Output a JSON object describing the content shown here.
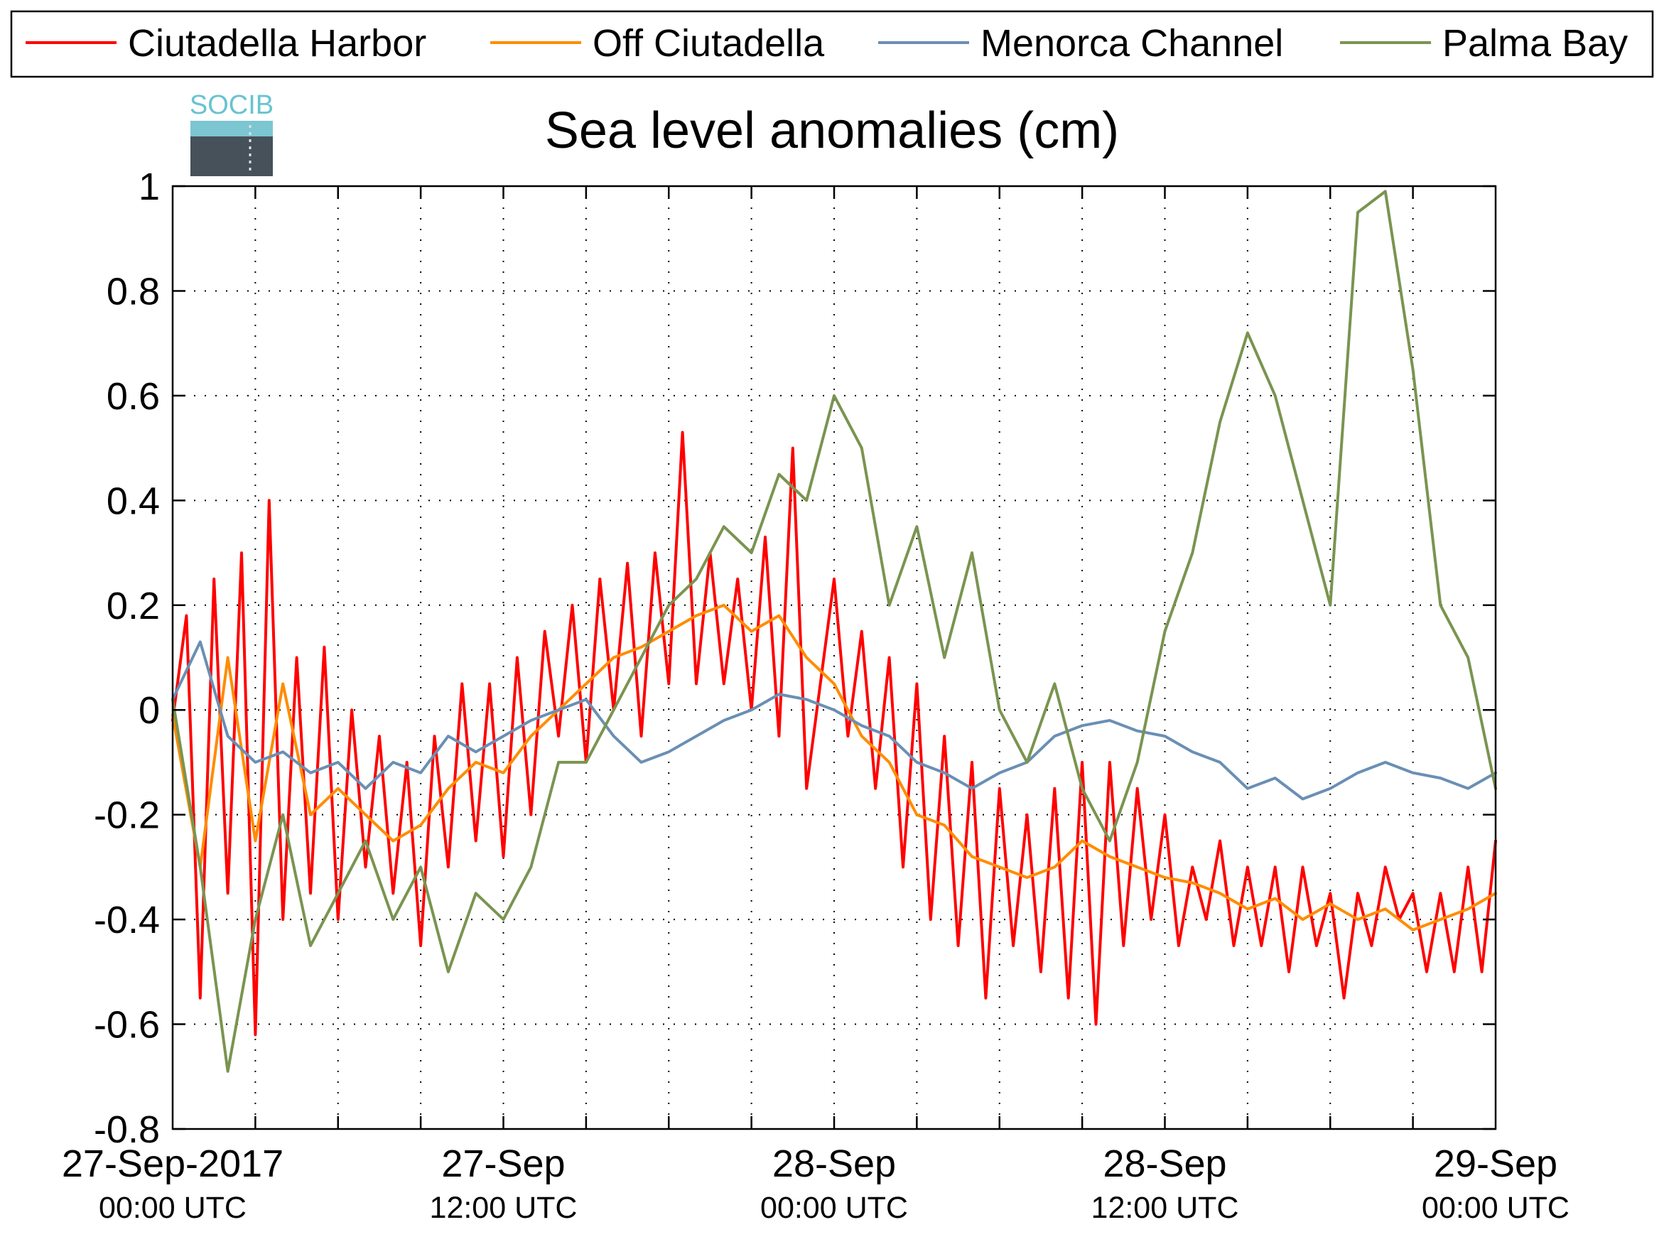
{
  "chart_data": {
    "type": "line",
    "title": "Sea level anomalies (cm)",
    "xlabel": "",
    "ylabel": "",
    "xlim": [
      "2017-09-27 00:00",
      "2017-09-29 00:00"
    ],
    "ylim": [
      -0.8,
      1
    ],
    "x_ticks": [
      {
        "date": "27-Sep-2017",
        "time": "00:00 UTC"
      },
      {
        "date": "27-Sep",
        "time": "12:00 UTC"
      },
      {
        "date": "28-Sep",
        "time": "00:00 UTC"
      },
      {
        "date": "28-Sep",
        "time": "12:00 UTC"
      },
      {
        "date": "29-Sep",
        "time": "00:00 UTC"
      }
    ],
    "y_ticks": [
      "-0.8",
      "-0.6",
      "-0.4",
      "-0.2",
      "0",
      "0.2",
      "0.4",
      "0.6",
      "0.8",
      "1"
    ],
    "grid": true,
    "legend_position": "top",
    "logo_text": "SOCIB",
    "series": [
      {
        "name": "Ciutadella Harbor",
        "color": "#ff0000",
        "points": [
          [
            "2017-09-27 00:00",
            -0.02
          ],
          [
            "2017-09-27 00:30",
            0.18
          ],
          [
            "2017-09-27 01:00",
            -0.55
          ],
          [
            "2017-09-27 01:30",
            0.25
          ],
          [
            "2017-09-27 02:00",
            -0.35
          ],
          [
            "2017-09-27 02:30",
            0.3
          ],
          [
            "2017-09-27 03:00",
            -0.62
          ],
          [
            "2017-09-27 03:30",
            0.4
          ],
          [
            "2017-09-27 04:00",
            -0.4
          ],
          [
            "2017-09-27 04:30",
            0.1
          ],
          [
            "2017-09-27 05:00",
            -0.35
          ],
          [
            "2017-09-27 05:30",
            0.12
          ],
          [
            "2017-09-27 06:00",
            -0.4
          ],
          [
            "2017-09-27 06:30",
            0.0
          ],
          [
            "2017-09-27 07:00",
            -0.3
          ],
          [
            "2017-09-27 07:30",
            -0.05
          ],
          [
            "2017-09-27 08:00",
            -0.35
          ],
          [
            "2017-09-27 08:30",
            -0.1
          ],
          [
            "2017-09-27 09:00",
            -0.45
          ],
          [
            "2017-09-27 09:30",
            -0.05
          ],
          [
            "2017-09-27 10:00",
            -0.3
          ],
          [
            "2017-09-27 10:30",
            0.05
          ],
          [
            "2017-09-27 11:00",
            -0.25
          ],
          [
            "2017-09-27 11:30",
            0.05
          ],
          [
            "2017-09-27 12:00",
            -0.28
          ],
          [
            "2017-09-27 12:30",
            0.1
          ],
          [
            "2017-09-27 13:00",
            -0.2
          ],
          [
            "2017-09-27 13:30",
            0.15
          ],
          [
            "2017-09-27 14:00",
            -0.05
          ],
          [
            "2017-09-27 14:30",
            0.2
          ],
          [
            "2017-09-27 15:00",
            -0.1
          ],
          [
            "2017-09-27 15:30",
            0.25
          ],
          [
            "2017-09-27 16:00",
            0.0
          ],
          [
            "2017-09-27 16:30",
            0.28
          ],
          [
            "2017-09-27 17:00",
            -0.05
          ],
          [
            "2017-09-27 17:30",
            0.3
          ],
          [
            "2017-09-27 18:00",
            0.05
          ],
          [
            "2017-09-27 18:30",
            0.53
          ],
          [
            "2017-09-27 19:00",
            0.05
          ],
          [
            "2017-09-27 19:30",
            0.3
          ],
          [
            "2017-09-27 20:00",
            0.05
          ],
          [
            "2017-09-27 20:30",
            0.25
          ],
          [
            "2017-09-27 21:00",
            0.0
          ],
          [
            "2017-09-27 21:30",
            0.33
          ],
          [
            "2017-09-27 22:00",
            -0.05
          ],
          [
            "2017-09-27 22:30",
            0.5
          ],
          [
            "2017-09-27 23:00",
            -0.15
          ],
          [
            "2017-09-28 00:00",
            0.25
          ],
          [
            "2017-09-28 00:30",
            -0.05
          ],
          [
            "2017-09-28 01:00",
            0.15
          ],
          [
            "2017-09-28 01:30",
            -0.15
          ],
          [
            "2017-09-28 02:00",
            0.1
          ],
          [
            "2017-09-28 02:30",
            -0.3
          ],
          [
            "2017-09-28 03:00",
            0.05
          ],
          [
            "2017-09-28 03:30",
            -0.4
          ],
          [
            "2017-09-28 04:00",
            -0.05
          ],
          [
            "2017-09-28 04:30",
            -0.45
          ],
          [
            "2017-09-28 05:00",
            -0.1
          ],
          [
            "2017-09-28 05:30",
            -0.55
          ],
          [
            "2017-09-28 06:00",
            -0.15
          ],
          [
            "2017-09-28 06:30",
            -0.45
          ],
          [
            "2017-09-28 07:00",
            -0.2
          ],
          [
            "2017-09-28 07:30",
            -0.5
          ],
          [
            "2017-09-28 08:00",
            -0.15
          ],
          [
            "2017-09-28 08:30",
            -0.55
          ],
          [
            "2017-09-28 09:00",
            -0.1
          ],
          [
            "2017-09-28 09:30",
            -0.6
          ],
          [
            "2017-09-28 10:00",
            -0.1
          ],
          [
            "2017-09-28 10:30",
            -0.45
          ],
          [
            "2017-09-28 11:00",
            -0.15
          ],
          [
            "2017-09-28 11:30",
            -0.4
          ],
          [
            "2017-09-28 12:00",
            -0.2
          ],
          [
            "2017-09-28 12:30",
            -0.45
          ],
          [
            "2017-09-28 13:00",
            -0.3
          ],
          [
            "2017-09-28 13:30",
            -0.4
          ],
          [
            "2017-09-28 14:00",
            -0.25
          ],
          [
            "2017-09-28 14:30",
            -0.45
          ],
          [
            "2017-09-28 15:00",
            -0.3
          ],
          [
            "2017-09-28 15:30",
            -0.45
          ],
          [
            "2017-09-28 16:00",
            -0.3
          ],
          [
            "2017-09-28 16:30",
            -0.5
          ],
          [
            "2017-09-28 17:00",
            -0.3
          ],
          [
            "2017-09-28 17:30",
            -0.45
          ],
          [
            "2017-09-28 18:00",
            -0.35
          ],
          [
            "2017-09-28 18:30",
            -0.55
          ],
          [
            "2017-09-28 19:00",
            -0.35
          ],
          [
            "2017-09-28 19:30",
            -0.45
          ],
          [
            "2017-09-28 20:00",
            -0.3
          ],
          [
            "2017-09-28 20:30",
            -0.4
          ],
          [
            "2017-09-28 21:00",
            -0.35
          ],
          [
            "2017-09-28 21:30",
            -0.5
          ],
          [
            "2017-09-28 22:00",
            -0.35
          ],
          [
            "2017-09-28 22:30",
            -0.5
          ],
          [
            "2017-09-28 23:00",
            -0.3
          ],
          [
            "2017-09-28 23:30",
            -0.5
          ],
          [
            "2017-09-29 00:00",
            -0.25
          ]
        ]
      },
      {
        "name": "Off Ciutadella",
        "color": "#ff8c00",
        "points": [
          [
            "2017-09-27 00:00",
            -0.01
          ],
          [
            "2017-09-27 01:00",
            -0.3
          ],
          [
            "2017-09-27 02:00",
            0.1
          ],
          [
            "2017-09-27 03:00",
            -0.25
          ],
          [
            "2017-09-27 04:00",
            0.05
          ],
          [
            "2017-09-27 05:00",
            -0.2
          ],
          [
            "2017-09-27 06:00",
            -0.15
          ],
          [
            "2017-09-27 07:00",
            -0.2
          ],
          [
            "2017-09-27 08:00",
            -0.25
          ],
          [
            "2017-09-27 09:00",
            -0.22
          ],
          [
            "2017-09-27 10:00",
            -0.15
          ],
          [
            "2017-09-27 11:00",
            -0.1
          ],
          [
            "2017-09-27 12:00",
            -0.12
          ],
          [
            "2017-09-27 13:00",
            -0.05
          ],
          [
            "2017-09-27 14:00",
            0.0
          ],
          [
            "2017-09-27 15:00",
            0.05
          ],
          [
            "2017-09-27 16:00",
            0.1
          ],
          [
            "2017-09-27 17:00",
            0.12
          ],
          [
            "2017-09-27 18:00",
            0.15
          ],
          [
            "2017-09-27 19:00",
            0.18
          ],
          [
            "2017-09-27 20:00",
            0.2
          ],
          [
            "2017-09-27 21:00",
            0.15
          ],
          [
            "2017-09-27 22:00",
            0.18
          ],
          [
            "2017-09-27 23:00",
            0.1
          ],
          [
            "2017-09-28 00:00",
            0.05
          ],
          [
            "2017-09-28 01:00",
            -0.05
          ],
          [
            "2017-09-28 02:00",
            -0.1
          ],
          [
            "2017-09-28 03:00",
            -0.2
          ],
          [
            "2017-09-28 04:00",
            -0.22
          ],
          [
            "2017-09-28 05:00",
            -0.28
          ],
          [
            "2017-09-28 06:00",
            -0.3
          ],
          [
            "2017-09-28 07:00",
            -0.32
          ],
          [
            "2017-09-28 08:00",
            -0.3
          ],
          [
            "2017-09-28 09:00",
            -0.25
          ],
          [
            "2017-09-28 10:00",
            -0.28
          ],
          [
            "2017-09-28 11:00",
            -0.3
          ],
          [
            "2017-09-28 12:00",
            -0.32
          ],
          [
            "2017-09-28 13:00",
            -0.33
          ],
          [
            "2017-09-28 14:00",
            -0.35
          ],
          [
            "2017-09-28 15:00",
            -0.38
          ],
          [
            "2017-09-28 16:00",
            -0.36
          ],
          [
            "2017-09-28 17:00",
            -0.4
          ],
          [
            "2017-09-28 18:00",
            -0.37
          ],
          [
            "2017-09-28 19:00",
            -0.4
          ],
          [
            "2017-09-28 20:00",
            -0.38
          ],
          [
            "2017-09-28 21:00",
            -0.42
          ],
          [
            "2017-09-28 22:00",
            -0.4
          ],
          [
            "2017-09-28 23:00",
            -0.38
          ],
          [
            "2017-09-29 00:00",
            -0.35
          ]
        ]
      },
      {
        "name": "Menorca Channel",
        "color": "#6a8fb4",
        "points": [
          [
            "2017-09-27 00:00",
            0.02
          ],
          [
            "2017-09-27 01:00",
            0.13
          ],
          [
            "2017-09-27 02:00",
            -0.05
          ],
          [
            "2017-09-27 03:00",
            -0.1
          ],
          [
            "2017-09-27 04:00",
            -0.08
          ],
          [
            "2017-09-27 05:00",
            -0.12
          ],
          [
            "2017-09-27 06:00",
            -0.1
          ],
          [
            "2017-09-27 07:00",
            -0.15
          ],
          [
            "2017-09-27 08:00",
            -0.1
          ],
          [
            "2017-09-27 09:00",
            -0.12
          ],
          [
            "2017-09-27 10:00",
            -0.05
          ],
          [
            "2017-09-27 11:00",
            -0.08
          ],
          [
            "2017-09-27 12:00",
            -0.05
          ],
          [
            "2017-09-27 13:00",
            -0.02
          ],
          [
            "2017-09-27 14:00",
            0.0
          ],
          [
            "2017-09-27 15:00",
            0.02
          ],
          [
            "2017-09-27 16:00",
            -0.05
          ],
          [
            "2017-09-27 17:00",
            -0.1
          ],
          [
            "2017-09-27 18:00",
            -0.08
          ],
          [
            "2017-09-27 19:00",
            -0.05
          ],
          [
            "2017-09-27 20:00",
            -0.02
          ],
          [
            "2017-09-27 21:00",
            0.0
          ],
          [
            "2017-09-27 22:00",
            0.03
          ],
          [
            "2017-09-27 23:00",
            0.02
          ],
          [
            "2017-09-28 00:00",
            0.0
          ],
          [
            "2017-09-28 01:00",
            -0.03
          ],
          [
            "2017-09-28 02:00",
            -0.05
          ],
          [
            "2017-09-28 03:00",
            -0.1
          ],
          [
            "2017-09-28 04:00",
            -0.12
          ],
          [
            "2017-09-28 05:00",
            -0.15
          ],
          [
            "2017-09-28 06:00",
            -0.12
          ],
          [
            "2017-09-28 07:00",
            -0.1
          ],
          [
            "2017-09-28 08:00",
            -0.05
          ],
          [
            "2017-09-28 09:00",
            -0.03
          ],
          [
            "2017-09-28 10:00",
            -0.02
          ],
          [
            "2017-09-28 11:00",
            -0.04
          ],
          [
            "2017-09-28 12:00",
            -0.05
          ],
          [
            "2017-09-28 13:00",
            -0.08
          ],
          [
            "2017-09-28 14:00",
            -0.1
          ],
          [
            "2017-09-28 15:00",
            -0.15
          ],
          [
            "2017-09-28 16:00",
            -0.13
          ],
          [
            "2017-09-28 17:00",
            -0.17
          ],
          [
            "2017-09-28 18:00",
            -0.15
          ],
          [
            "2017-09-28 19:00",
            -0.12
          ],
          [
            "2017-09-28 20:00",
            -0.1
          ],
          [
            "2017-09-28 21:00",
            -0.12
          ],
          [
            "2017-09-28 22:00",
            -0.13
          ],
          [
            "2017-09-28 23:00",
            -0.15
          ],
          [
            "2017-09-29 00:00",
            -0.12
          ]
        ]
      },
      {
        "name": "Palma Bay",
        "color": "#7a9450",
        "points": [
          [
            "2017-09-27 00:00",
            0.02
          ],
          [
            "2017-09-27 01:00",
            -0.3
          ],
          [
            "2017-09-27 02:00",
            -0.69
          ],
          [
            "2017-09-27 03:00",
            -0.4
          ],
          [
            "2017-09-27 04:00",
            -0.2
          ],
          [
            "2017-09-27 05:00",
            -0.45
          ],
          [
            "2017-09-27 06:00",
            -0.35
          ],
          [
            "2017-09-27 07:00",
            -0.25
          ],
          [
            "2017-09-27 08:00",
            -0.4
          ],
          [
            "2017-09-27 09:00",
            -0.3
          ],
          [
            "2017-09-27 10:00",
            -0.5
          ],
          [
            "2017-09-27 11:00",
            -0.35
          ],
          [
            "2017-09-27 12:00",
            -0.4
          ],
          [
            "2017-09-27 13:00",
            -0.3
          ],
          [
            "2017-09-27 14:00",
            -0.1
          ],
          [
            "2017-09-27 15:00",
            -0.1
          ],
          [
            "2017-09-27 16:00",
            0.0
          ],
          [
            "2017-09-27 17:00",
            0.1
          ],
          [
            "2017-09-27 18:00",
            0.2
          ],
          [
            "2017-09-27 19:00",
            0.25
          ],
          [
            "2017-09-27 20:00",
            0.35
          ],
          [
            "2017-09-27 21:00",
            0.3
          ],
          [
            "2017-09-27 22:00",
            0.45
          ],
          [
            "2017-09-27 23:00",
            0.4
          ],
          [
            "2017-09-28 00:00",
            0.6
          ],
          [
            "2017-09-28 01:00",
            0.5
          ],
          [
            "2017-09-28 02:00",
            0.2
          ],
          [
            "2017-09-28 03:00",
            0.35
          ],
          [
            "2017-09-28 04:00",
            0.1
          ],
          [
            "2017-09-28 05:00",
            0.3
          ],
          [
            "2017-09-28 06:00",
            0.0
          ],
          [
            "2017-09-28 07:00",
            -0.1
          ],
          [
            "2017-09-28 08:00",
            0.05
          ],
          [
            "2017-09-28 09:00",
            -0.15
          ],
          [
            "2017-09-28 10:00",
            -0.25
          ],
          [
            "2017-09-28 11:00",
            -0.1
          ],
          [
            "2017-09-28 12:00",
            0.15
          ],
          [
            "2017-09-28 13:00",
            0.3
          ],
          [
            "2017-09-28 14:00",
            0.55
          ],
          [
            "2017-09-28 15:00",
            0.72
          ],
          [
            "2017-09-28 16:00",
            0.6
          ],
          [
            "2017-09-28 17:00",
            0.4
          ],
          [
            "2017-09-28 18:00",
            0.2
          ],
          [
            "2017-09-28 19:00",
            0.95
          ],
          [
            "2017-09-28 20:00",
            0.99
          ],
          [
            "2017-09-28 21:00",
            0.65
          ],
          [
            "2017-09-28 22:00",
            0.2
          ],
          [
            "2017-09-28 23:00",
            0.1
          ],
          [
            "2017-09-29 00:00",
            -0.15
          ]
        ]
      }
    ]
  }
}
